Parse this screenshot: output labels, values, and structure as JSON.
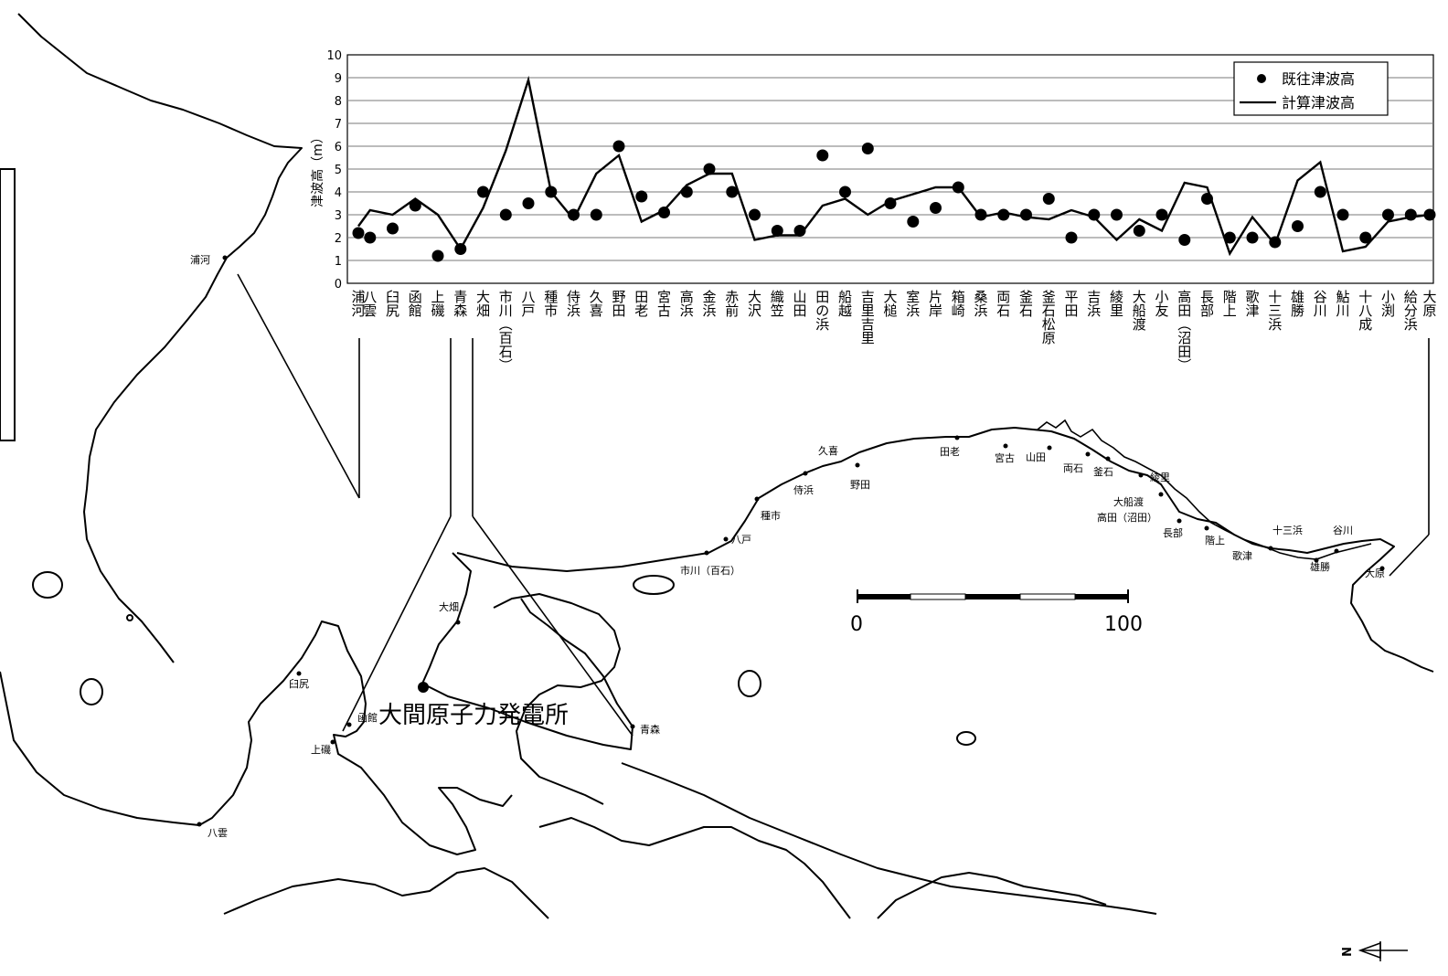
{
  "chart_data": {
    "type": "line",
    "ylabel": "津波高（m）",
    "ylim": [
      0,
      10
    ],
    "yticks": [
      0,
      1,
      2,
      3,
      4,
      5,
      6,
      7,
      8,
      9,
      10
    ],
    "grid": true,
    "legend_position": "top-right",
    "categories": [
      "浦河",
      "八雲",
      "臼尻",
      "函館",
      "上磯",
      "青森",
      "大畑",
      "市川（百石）",
      "八戸",
      "種市",
      "侍浜",
      "久喜",
      "野田",
      "田老",
      "宮古",
      "高浜",
      "金浜",
      "赤前",
      "大沢",
      "織笠",
      "山田",
      "田の浜",
      "船越",
      "吉里吉里",
      "大槌",
      "室浜",
      "片岸",
      "箱崎",
      "桑浜",
      "両石",
      "釜石",
      "釜石松原",
      "平田",
      "吉浜",
      "綾里",
      "大船渡",
      "小友",
      "高田（沼田）",
      "長部",
      "階上",
      "歌津",
      "十三浜",
      "雄勝",
      "谷川",
      "鮎川",
      "十八成",
      "小渕",
      "給分浜",
      "大原"
    ],
    "series": [
      {
        "name": "既往津波高",
        "style": "marker",
        "values": [
          2.2,
          2.0,
          2.4,
          3.4,
          1.2,
          1.5,
          4.0,
          3.0,
          3.5,
          4.0,
          3.0,
          3.0,
          6.0,
          3.8,
          3.1,
          4.0,
          5.0,
          4.0,
          3.0,
          2.3,
          2.3,
          5.6,
          4.0,
          5.9,
          3.5,
          2.7,
          3.3,
          4.2,
          3.0,
          3.0,
          3.0,
          3.7,
          2.0,
          3.0,
          3.0,
          2.3,
          3.0,
          1.9,
          3.7,
          2.0,
          2.0,
          1.8,
          2.5,
          4.0,
          3.0,
          2.0,
          3.0,
          3.0,
          3.0
        ]
      },
      {
        "name": "計算津波高",
        "style": "line",
        "values": [
          2.5,
          3.2,
          3.0,
          3.7,
          3.0,
          1.5,
          3.3,
          5.8,
          8.9,
          4.0,
          2.8,
          4.8,
          5.6,
          2.7,
          3.2,
          4.3,
          4.8,
          4.8,
          1.9,
          2.1,
          2.1,
          3.4,
          3.7,
          3.0,
          3.6,
          3.9,
          4.2,
          4.2,
          2.9,
          3.1,
          2.9,
          2.8,
          3.2,
          2.9,
          1.9,
          2.8,
          2.3,
          4.4,
          4.2,
          1.3,
          2.9,
          1.7,
          4.5,
          5.3,
          1.4,
          1.6,
          2.7,
          2.9,
          3.0
        ]
      }
    ]
  },
  "legend": {
    "observed": "既往津波高",
    "computed": "計算津波高"
  },
  "map": {
    "plant_label": "大間原子力発電所",
    "scale_labels": [
      "0",
      "100"
    ],
    "north_label": "N",
    "place_labels": [
      "浦河",
      "臼尻",
      "函館",
      "上磯",
      "八雲",
      "大畑",
      "青森",
      "市川（百石）",
      "八戸",
      "種市",
      "侍浜",
      "久喜",
      "野田",
      "田老",
      "宮古",
      "山田",
      "両石",
      "釜石",
      "綾里",
      "大船渡",
      "高田（沼田）",
      "長部",
      "階上",
      "歌津",
      "十三浜",
      "谷川",
      "雄勝",
      "大原"
    ]
  }
}
